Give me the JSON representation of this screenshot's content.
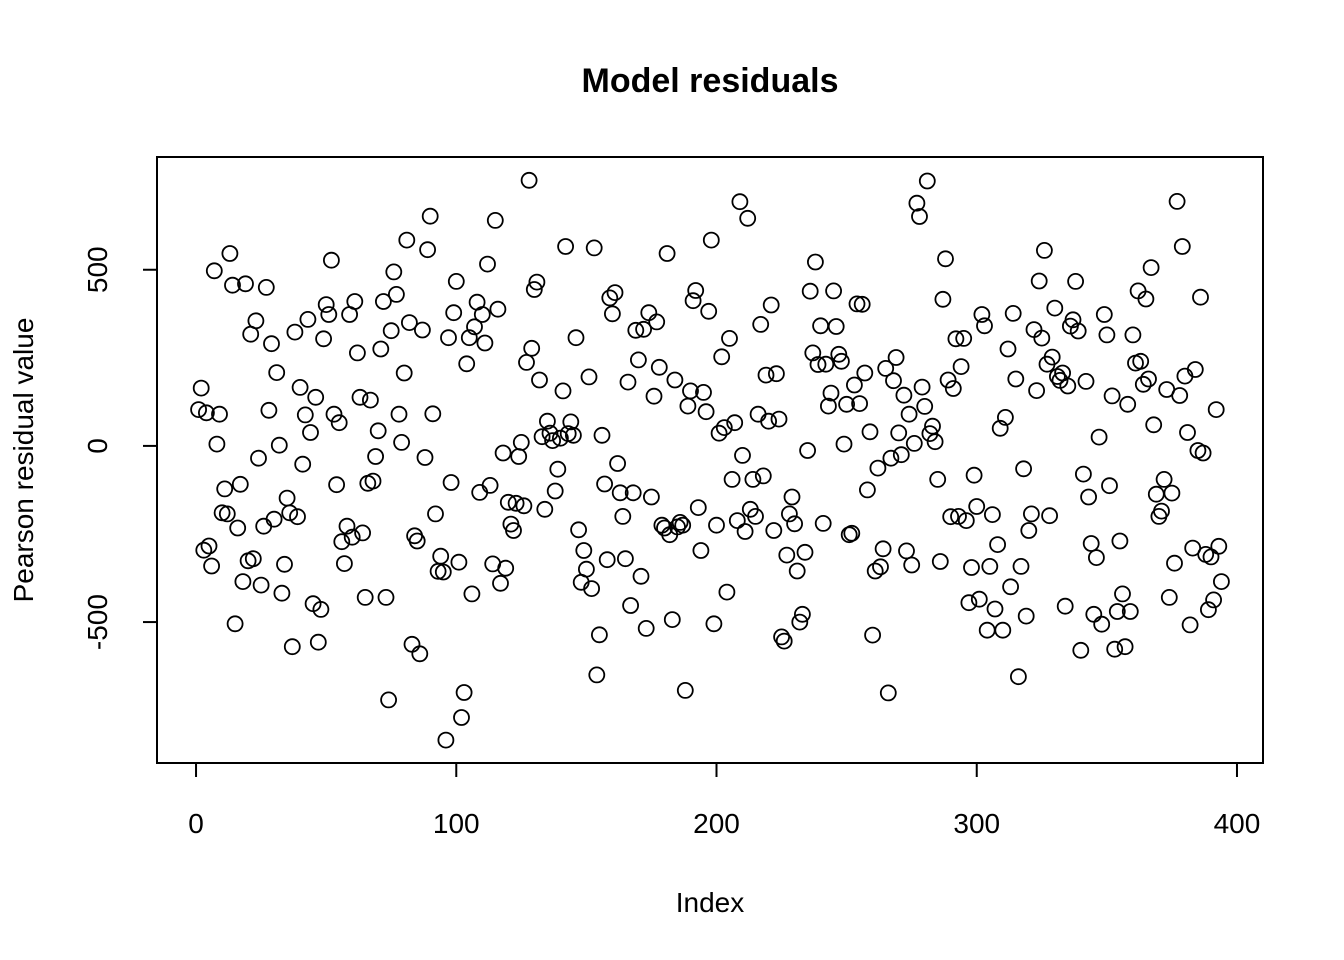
{
  "chart_data": {
    "type": "scatter",
    "title": "Model residuals",
    "xlabel": "Index",
    "ylabel": "Pearson residual value",
    "xlim": [
      -15,
      410
    ],
    "ylim": [
      -900,
      820
    ],
    "x_ticks": [
      0,
      100,
      200,
      300,
      400
    ],
    "y_ticks": [
      -500,
      0,
      500
    ],
    "grid": false,
    "legend": "none",
    "marker": "open-circle",
    "colors": {
      "marker_stroke": "#000000",
      "axis": "#000000",
      "background": "#ffffff"
    },
    "points": [
      [
        1,
        103
      ],
      [
        2,
        164
      ],
      [
        3,
        -296
      ],
      [
        4,
        94
      ],
      [
        5,
        -284
      ],
      [
        6,
        -341
      ],
      [
        7,
        497
      ],
      [
        8,
        5
      ],
      [
        9,
        90
      ],
      [
        10,
        -190
      ],
      [
        11,
        -122
      ],
      [
        12,
        -193
      ],
      [
        13,
        546
      ],
      [
        14,
        456
      ],
      [
        15,
        -505
      ],
      [
        16,
        -233
      ],
      [
        17,
        -109
      ],
      [
        18,
        -385
      ],
      [
        19,
        460
      ],
      [
        20,
        -326
      ],
      [
        21,
        317
      ],
      [
        22,
        -320
      ],
      [
        23,
        355
      ],
      [
        24,
        -35
      ],
      [
        25,
        -395
      ],
      [
        26,
        -228
      ],
      [
        27,
        450
      ],
      [
        28,
        101
      ],
      [
        29,
        290
      ],
      [
        30,
        -208
      ],
      [
        31,
        208
      ],
      [
        32,
        2
      ],
      [
        33,
        -418
      ],
      [
        34,
        -336
      ],
      [
        35,
        -148
      ],
      [
        36,
        -190
      ],
      [
        37,
        -570
      ],
      [
        38,
        323
      ],
      [
        39,
        -201
      ],
      [
        40,
        166
      ],
      [
        41,
        -52
      ],
      [
        42,
        88
      ],
      [
        43,
        359
      ],
      [
        44,
        38
      ],
      [
        45,
        -448
      ],
      [
        46,
        138
      ],
      [
        47,
        -557
      ],
      [
        48,
        -464
      ],
      [
        49,
        304
      ],
      [
        50,
        401
      ],
      [
        51,
        373
      ],
      [
        52,
        527
      ],
      [
        53,
        90
      ],
      [
        54,
        -110
      ],
      [
        55,
        66
      ],
      [
        56,
        -272
      ],
      [
        57,
        -334
      ],
      [
        58,
        -228
      ],
      [
        59,
        373
      ],
      [
        60,
        -259
      ],
      [
        61,
        410
      ],
      [
        62,
        264
      ],
      [
        63,
        138
      ],
      [
        64,
        -247
      ],
      [
        65,
        -430
      ],
      [
        66,
        -106
      ],
      [
        67,
        130
      ],
      [
        68,
        -100
      ],
      [
        69,
        -30
      ],
      [
        70,
        43
      ],
      [
        71,
        275
      ],
      [
        72,
        410
      ],
      [
        73,
        -430
      ],
      [
        74,
        -721
      ],
      [
        75,
        327
      ],
      [
        76,
        494
      ],
      [
        77,
        430
      ],
      [
        78,
        90
      ],
      [
        79,
        10
      ],
      [
        80,
        207
      ],
      [
        81,
        584
      ],
      [
        82,
        350
      ],
      [
        83,
        -563
      ],
      [
        84,
        -255
      ],
      [
        85,
        -270
      ],
      [
        86,
        -590
      ],
      [
        87,
        329
      ],
      [
        88,
        -33
      ],
      [
        89,
        557
      ],
      [
        90,
        652
      ],
      [
        91,
        91
      ],
      [
        92,
        -193
      ],
      [
        93,
        -356
      ],
      [
        94,
        -313
      ],
      [
        95,
        -358
      ],
      [
        96,
        -835
      ],
      [
        97,
        307
      ],
      [
        98,
        -104
      ],
      [
        99,
        378
      ],
      [
        100,
        467
      ],
      [
        101,
        -330
      ],
      [
        102,
        -771
      ],
      [
        103,
        -700
      ],
      [
        104,
        233
      ],
      [
        105,
        307
      ],
      [
        106,
        -420
      ],
      [
        107,
        338
      ],
      [
        108,
        408
      ],
      [
        109,
        -132
      ],
      [
        110,
        373
      ],
      [
        111,
        292
      ],
      [
        112,
        516
      ],
      [
        113,
        -112
      ],
      [
        114,
        -335
      ],
      [
        115,
        640
      ],
      [
        116,
        388
      ],
      [
        117,
        -390
      ],
      [
        118,
        -20
      ],
      [
        119,
        -347
      ],
      [
        120,
        -160
      ],
      [
        121,
        -222
      ],
      [
        122,
        -240
      ],
      [
        123,
        -163
      ],
      [
        124,
        -30
      ],
      [
        125,
        10
      ],
      [
        126,
        -170
      ],
      [
        127,
        237
      ],
      [
        128,
        754
      ],
      [
        129,
        277
      ],
      [
        130,
        444
      ],
      [
        131,
        465
      ],
      [
        132,
        187
      ],
      [
        133,
        26
      ],
      [
        134,
        -180
      ],
      [
        135,
        70
      ],
      [
        136,
        36
      ],
      [
        137,
        15
      ],
      [
        138,
        -128
      ],
      [
        139,
        -66
      ],
      [
        140,
        22
      ],
      [
        141,
        156
      ],
      [
        142,
        566
      ],
      [
        143,
        35
      ],
      [
        144,
        68
      ],
      [
        145,
        30
      ],
      [
        146,
        307
      ],
      [
        147,
        -238
      ],
      [
        148,
        -387
      ],
      [
        149,
        -297
      ],
      [
        150,
        -350
      ],
      [
        151,
        196
      ],
      [
        152,
        -405
      ],
      [
        153,
        562
      ],
      [
        154,
        -650
      ],
      [
        155,
        -536
      ],
      [
        156,
        30
      ],
      [
        157,
        -108
      ],
      [
        158,
        -323
      ],
      [
        159,
        420
      ],
      [
        160,
        375
      ],
      [
        161,
        435
      ],
      [
        162,
        -50
      ],
      [
        163,
        -133
      ],
      [
        164,
        -200
      ],
      [
        165,
        -320
      ],
      [
        166,
        181
      ],
      [
        167,
        -453
      ],
      [
        168,
        -133
      ],
      [
        169,
        328
      ],
      [
        170,
        244
      ],
      [
        171,
        -370
      ],
      [
        172,
        331
      ],
      [
        173,
        -518
      ],
      [
        174,
        378
      ],
      [
        175,
        -145
      ],
      [
        176,
        141
      ],
      [
        177,
        352
      ],
      [
        178,
        223
      ],
      [
        179,
        -225
      ],
      [
        180,
        -233
      ],
      [
        181,
        546
      ],
      [
        182,
        -252
      ],
      [
        183,
        -493
      ],
      [
        184,
        187
      ],
      [
        185,
        -230
      ],
      [
        186,
        -217
      ],
      [
        187,
        -225
      ],
      [
        188,
        -694
      ],
      [
        189,
        113
      ],
      [
        190,
        156
      ],
      [
        191,
        412
      ],
      [
        192,
        441
      ],
      [
        193,
        -175
      ],
      [
        194,
        -297
      ],
      [
        195,
        152
      ],
      [
        196,
        97
      ],
      [
        197,
        382
      ],
      [
        198,
        584
      ],
      [
        199,
        -505
      ],
      [
        200,
        -225
      ],
      [
        201,
        36
      ],
      [
        202,
        253
      ],
      [
        203,
        52
      ],
      [
        204,
        -415
      ],
      [
        205,
        305
      ],
      [
        206,
        -95
      ],
      [
        207,
        66
      ],
      [
        208,
        -212
      ],
      [
        209,
        693
      ],
      [
        210,
        -27
      ],
      [
        211,
        -243
      ],
      [
        212,
        646
      ],
      [
        213,
        -180
      ],
      [
        214,
        -95
      ],
      [
        215,
        -200
      ],
      [
        216,
        90
      ],
      [
        217,
        345
      ],
      [
        218,
        -85
      ],
      [
        219,
        201
      ],
      [
        220,
        70
      ],
      [
        221,
        400
      ],
      [
        222,
        -240
      ],
      [
        223,
        205
      ],
      [
        224,
        76
      ],
      [
        225,
        -542
      ],
      [
        226,
        -554
      ],
      [
        227,
        -310
      ],
      [
        228,
        -193
      ],
      [
        229,
        -145
      ],
      [
        230,
        -221
      ],
      [
        231,
        -355
      ],
      [
        232,
        -500
      ],
      [
        233,
        -478
      ],
      [
        234,
        -302
      ],
      [
        235,
        -13
      ],
      [
        236,
        439
      ],
      [
        237,
        264
      ],
      [
        238,
        522
      ],
      [
        239,
        231
      ],
      [
        240,
        341
      ],
      [
        241,
        -220
      ],
      [
        242,
        232
      ],
      [
        243,
        113
      ],
      [
        244,
        150
      ],
      [
        245,
        440
      ],
      [
        246,
        339
      ],
      [
        247,
        260
      ],
      [
        248,
        240
      ],
      [
        249,
        5
      ],
      [
        250,
        118
      ],
      [
        251,
        -252
      ],
      [
        252,
        -248
      ],
      [
        253,
        173
      ],
      [
        254,
        403
      ],
      [
        255,
        120
      ],
      [
        256,
        402
      ],
      [
        257,
        207
      ],
      [
        258,
        -125
      ],
      [
        259,
        40
      ],
      [
        260,
        -537
      ],
      [
        261,
        -355
      ],
      [
        262,
        -63
      ],
      [
        263,
        -343
      ],
      [
        264,
        -292
      ],
      [
        265,
        220
      ],
      [
        266,
        -701
      ],
      [
        267,
        -35
      ],
      [
        268,
        185
      ],
      [
        269,
        251
      ],
      [
        270,
        37
      ],
      [
        271,
        -25
      ],
      [
        272,
        144
      ],
      [
        273,
        -298
      ],
      [
        274,
        90
      ],
      [
        275,
        -338
      ],
      [
        276,
        7
      ],
      [
        277,
        689
      ],
      [
        278,
        651
      ],
      [
        279,
        167
      ],
      [
        280,
        112
      ],
      [
        281,
        752
      ],
      [
        282,
        35
      ],
      [
        283,
        56
      ],
      [
        284,
        12
      ],
      [
        285,
        -95
      ],
      [
        286,
        -328
      ],
      [
        287,
        416
      ],
      [
        288,
        531
      ],
      [
        289,
        187
      ],
      [
        290,
        -201
      ],
      [
        291,
        163
      ],
      [
        292,
        304
      ],
      [
        293,
        -200
      ],
      [
        294,
        225
      ],
      [
        295,
        305
      ],
      [
        296,
        -212
      ],
      [
        297,
        -445
      ],
      [
        298,
        -345
      ],
      [
        299,
        -83
      ],
      [
        300,
        -172
      ],
      [
        301,
        -435
      ],
      [
        302,
        373
      ],
      [
        303,
        341
      ],
      [
        304,
        -523
      ],
      [
        305,
        -342
      ],
      [
        306,
        -195
      ],
      [
        307,
        -463
      ],
      [
        308,
        -280
      ],
      [
        309,
        50
      ],
      [
        310,
        -523
      ],
      [
        311,
        81
      ],
      [
        312,
        275
      ],
      [
        313,
        -400
      ],
      [
        314,
        376
      ],
      [
        315,
        190
      ],
      [
        316,
        -655
      ],
      [
        317,
        -342
      ],
      [
        318,
        -65
      ],
      [
        319,
        -483
      ],
      [
        320,
        -240
      ],
      [
        321,
        -193
      ],
      [
        322,
        330
      ],
      [
        323,
        157
      ],
      [
        324,
        468
      ],
      [
        325,
        306
      ],
      [
        326,
        555
      ],
      [
        327,
        232
      ],
      [
        328,
        -198
      ],
      [
        329,
        252
      ],
      [
        330,
        391
      ],
      [
        331,
        197
      ],
      [
        332,
        186
      ],
      [
        333,
        207
      ],
      [
        334,
        -455
      ],
      [
        335,
        170
      ],
      [
        336,
        340
      ],
      [
        337,
        358
      ],
      [
        338,
        467
      ],
      [
        339,
        326
      ],
      [
        340,
        -580
      ],
      [
        341,
        -80
      ],
      [
        342,
        183
      ],
      [
        343,
        -145
      ],
      [
        344,
        -277
      ],
      [
        345,
        -478
      ],
      [
        346,
        -317
      ],
      [
        347,
        25
      ],
      [
        348,
        -506
      ],
      [
        349,
        373
      ],
      [
        350,
        315
      ],
      [
        351,
        -113
      ],
      [
        352,
        142
      ],
      [
        353,
        -577
      ],
      [
        354,
        -470
      ],
      [
        355,
        -270
      ],
      [
        356,
        -420
      ],
      [
        357,
        -570
      ],
      [
        358,
        118
      ],
      [
        359,
        -470
      ],
      [
        360,
        315
      ],
      [
        361,
        235
      ],
      [
        362,
        440
      ],
      [
        363,
        240
      ],
      [
        364,
        175
      ],
      [
        365,
        417
      ],
      [
        366,
        190
      ],
      [
        367,
        506
      ],
      [
        368,
        60
      ],
      [
        369,
        -137
      ],
      [
        370,
        -200
      ],
      [
        371,
        -185
      ],
      [
        372,
        -95
      ],
      [
        373,
        160
      ],
      [
        374,
        -430
      ],
      [
        375,
        -134
      ],
      [
        376,
        -333
      ],
      [
        377,
        694
      ],
      [
        378,
        143
      ],
      [
        379,
        566
      ],
      [
        380,
        198
      ],
      [
        381,
        38
      ],
      [
        382,
        -508
      ],
      [
        383,
        -290
      ],
      [
        384,
        217
      ],
      [
        385,
        -13
      ],
      [
        386,
        422
      ],
      [
        387,
        -20
      ],
      [
        388,
        -308
      ],
      [
        389,
        -465
      ],
      [
        390,
        -315
      ],
      [
        391,
        -437
      ],
      [
        392,
        103
      ],
      [
        393,
        -285
      ],
      [
        394,
        -385
      ]
    ]
  }
}
